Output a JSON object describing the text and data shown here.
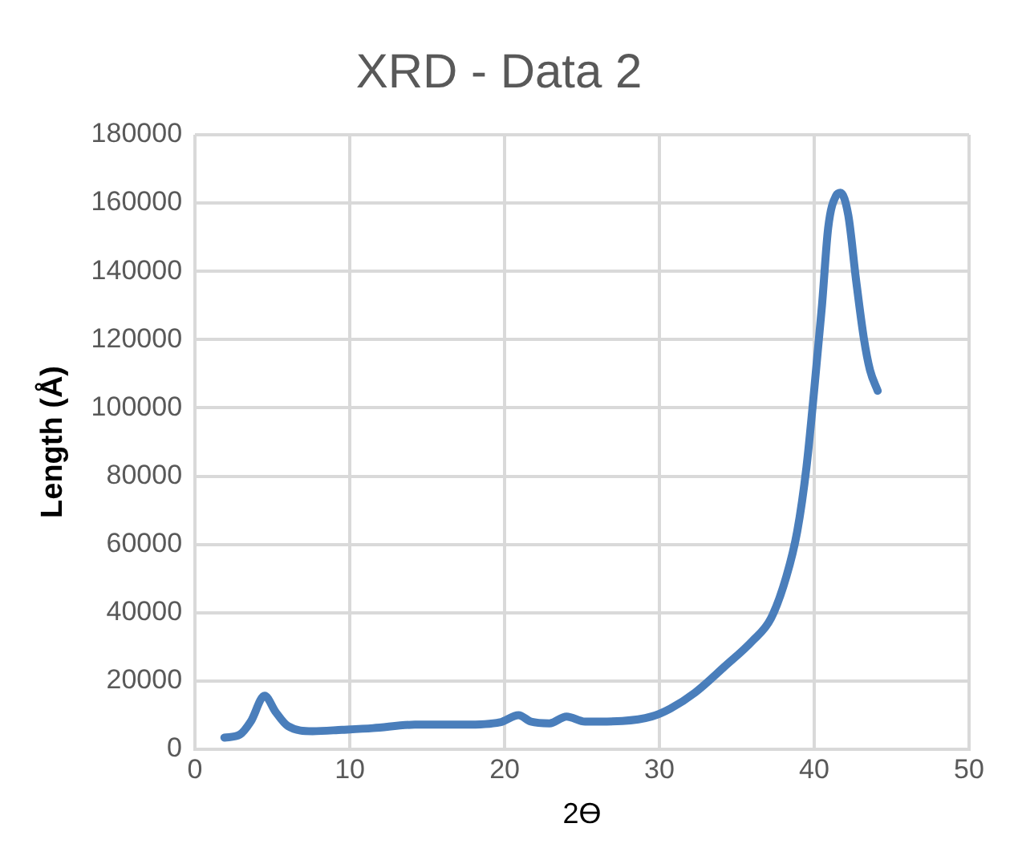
{
  "chart_data": {
    "type": "line",
    "title": "XRD - Data 2",
    "xlabel": "2ϴ",
    "ylabel": "Length (Å)",
    "series": [
      {
        "color": "#4a7ebb",
        "x": [
          1.9,
          2.9,
          3.6,
          4.5,
          5.2,
          6.0,
          7.6,
          9.5,
          11.5,
          14.2,
          17.4,
          19.7,
          20.9,
          21.7,
          22.9,
          24.0,
          25.2,
          27.6,
          29.5,
          30.7,
          32.3,
          34.2,
          36.0,
          37.2,
          38.2,
          38.9,
          39.5,
          40.0,
          40.5,
          40.9,
          41.4,
          41.7,
          42.2,
          42.7,
          43.2,
          43.6,
          44.1
        ],
        "values": [
          3400,
          4300,
          8100,
          15700,
          11000,
          6800,
          5300,
          5700,
          6200,
          7200,
          7200,
          7900,
          10000,
          8100,
          7600,
          9600,
          8100,
          8300,
          9600,
          11900,
          16600,
          24200,
          31700,
          38300,
          50600,
          63800,
          82700,
          105400,
          130000,
          152700,
          162100,
          163000,
          156400,
          137500,
          120500,
          111100,
          105000
        ]
      }
    ],
    "xlim": [
      0,
      50
    ],
    "xticks": [
      0,
      10,
      20,
      30,
      40,
      50
    ],
    "ylim": [
      0,
      180000
    ],
    "yticks": [
      0,
      20000,
      40000,
      60000,
      80000,
      100000,
      120000,
      140000,
      160000,
      180000
    ],
    "grid": true,
    "legend": false,
    "marker": "none",
    "line_style": "solid"
  }
}
